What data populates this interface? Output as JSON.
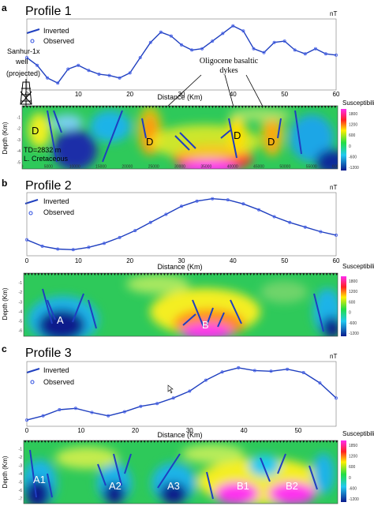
{
  "profiles": [
    {
      "panel": "a",
      "title": "Profile 1",
      "unit": "nT",
      "legend": [
        "Inverted",
        "Observed"
      ],
      "xlabel": "Distance (Km)",
      "xticks": [
        "0",
        "10",
        "20",
        "30",
        "40",
        "50",
        "60"
      ],
      "xvals": [
        0,
        10,
        20,
        30,
        40,
        50,
        60
      ],
      "xmax": 60,
      "depth_label": "Depth (Km)",
      "depth_ticks": [
        "-1",
        "-2",
        "-3",
        "-4",
        "-5"
      ],
      "model_xticks": [
        "0",
        "5000",
        "10000",
        "15000",
        "20000",
        "25000",
        "30000",
        "35000",
        "40000",
        "45000",
        "50000",
        "55000",
        "60000"
      ],
      "cb_title": "Susceptibility (SI units)",
      "cb_ticks": [
        "1800",
        "1200",
        "600",
        "0",
        "-600",
        "-1200"
      ],
      "bodies": [
        "D",
        "D",
        "D",
        "D"
      ],
      "well": [
        "Sanhur-1x",
        "well",
        "(projected)"
      ],
      "td": [
        "TD=2832 m",
        "L. Cretaceous"
      ],
      "annotation": [
        "Oligocene basaltic",
        "dykes"
      ]
    },
    {
      "panel": "b",
      "title": "Profile 2",
      "unit": "nT",
      "legend": [
        "Inverted",
        "Observed"
      ],
      "xlabel": "Distance (Km)",
      "xticks": [
        "0",
        "10",
        "20",
        "30",
        "40",
        "50",
        "60"
      ],
      "xvals": [
        0,
        10,
        20,
        30,
        40,
        50,
        60
      ],
      "xmax": 60,
      "depth_label": "Depth (Km)",
      "depth_ticks": [
        "-1",
        "-2",
        "-3",
        "-4",
        "-5",
        "-6"
      ],
      "cb_title": "Susceptibility (SI units)",
      "cb_ticks": [
        "1800",
        "1200",
        "600",
        "0",
        "-600",
        "-1200"
      ],
      "bodies": [
        "A",
        "B"
      ]
    },
    {
      "panel": "c",
      "title": "Profile 3",
      "unit": "nT",
      "legend": [
        "Inverted",
        "Observed"
      ],
      "xlabel": "Distance (Km)",
      "xticks": [
        "0",
        "10",
        "20",
        "30",
        "40",
        "50"
      ],
      "xvals": [
        0,
        10,
        20,
        30,
        40,
        50
      ],
      "xmax": 57,
      "depth_label": "Depth (Km)",
      "depth_ticks": [
        "-1",
        "-2",
        "-3",
        "-4",
        "-5",
        "-6",
        "-7"
      ],
      "cb_title": "Susceptibility (SI units)",
      "cb_ticks": [
        "1850",
        "1200",
        "600",
        "0",
        "-600",
        "-1200"
      ],
      "bodies": [
        "A1",
        "A2",
        "A3",
        "B1",
        "B2"
      ]
    }
  ],
  "chart_data": [
    {
      "type": "line",
      "title": "Profile 1",
      "xlabel": "Distance (Km)",
      "ylabel": "nT",
      "series": [
        {
          "name": "Inverted",
          "x": [
            0,
            2,
            4,
            6,
            8,
            10,
            12,
            14,
            16,
            18,
            20,
            22,
            24,
            26,
            28,
            30,
            32,
            34,
            36,
            38,
            40,
            42,
            44,
            46,
            48,
            50,
            52,
            54,
            56,
            58,
            60
          ],
          "y": [
            140,
            110,
            60,
            40,
            95,
            110,
            90,
            75,
            70,
            60,
            80,
            140,
            200,
            240,
            225,
            190,
            170,
            175,
            205,
            235,
            265,
            245,
            175,
            160,
            200,
            205,
            170,
            155,
            175,
            155,
            150
          ]
        },
        {
          "name": "Observed",
          "x": [
            0,
            2,
            4,
            6,
            8,
            10,
            12,
            14,
            16,
            18,
            20,
            22,
            24,
            26,
            28,
            30,
            32,
            34,
            36,
            38,
            40,
            42,
            44,
            46,
            48,
            50,
            52,
            54,
            56,
            58,
            60
          ],
          "y": [
            140,
            110,
            60,
            40,
            95,
            110,
            90,
            75,
            70,
            60,
            80,
            140,
            200,
            240,
            225,
            190,
            170,
            175,
            205,
            235,
            265,
            245,
            175,
            160,
            200,
            205,
            170,
            155,
            175,
            155,
            150
          ]
        }
      ]
    },
    {
      "type": "line",
      "title": "Profile 2",
      "xlabel": "Distance (Km)",
      "ylabel": "nT",
      "series": [
        {
          "name": "Inverted",
          "x": [
            0,
            3,
            6,
            9,
            12,
            15,
            18,
            21,
            24,
            27,
            30,
            33,
            36,
            39,
            42,
            45,
            48,
            51,
            54,
            57,
            60
          ],
          "y": [
            -120,
            -175,
            -200,
            -205,
            -185,
            -150,
            -100,
            -40,
            30,
            100,
            170,
            215,
            235,
            225,
            190,
            140,
            80,
            30,
            -10,
            -50,
            -80
          ]
        },
        {
          "name": "Observed",
          "x": [
            0,
            3,
            6,
            9,
            12,
            15,
            18,
            21,
            24,
            27,
            30,
            33,
            36,
            39,
            42,
            45,
            48,
            51,
            54,
            57,
            60
          ],
          "y": [
            -120,
            -175,
            -200,
            -205,
            -185,
            -150,
            -100,
            -40,
            30,
            100,
            170,
            215,
            235,
            225,
            190,
            140,
            80,
            30,
            -10,
            -50,
            -80
          ]
        }
      ]
    },
    {
      "type": "line",
      "title": "Profile 3",
      "xlabel": "Distance (Km)",
      "ylabel": "nT",
      "series": [
        {
          "name": "Inverted",
          "x": [
            0,
            3,
            6,
            9,
            12,
            15,
            18,
            21,
            24,
            27,
            30,
            33,
            36,
            39,
            42,
            45,
            48,
            51,
            54,
            57
          ],
          "y": [
            -180,
            -150,
            -105,
            -95,
            -125,
            -150,
            -120,
            -80,
            -60,
            -20,
            30,
            110,
            170,
            200,
            180,
            175,
            190,
            165,
            90,
            -20
          ]
        },
        {
          "name": "Observed",
          "x": [
            0,
            3,
            6,
            9,
            12,
            15,
            18,
            21,
            24,
            27,
            30,
            33,
            36,
            39,
            42,
            45,
            48,
            51,
            54,
            57
          ],
          "y": [
            -180,
            -150,
            -105,
            -95,
            -125,
            -150,
            -120,
            -80,
            -60,
            -20,
            30,
            110,
            170,
            200,
            180,
            175,
            190,
            165,
            90,
            -20
          ]
        }
      ]
    }
  ]
}
